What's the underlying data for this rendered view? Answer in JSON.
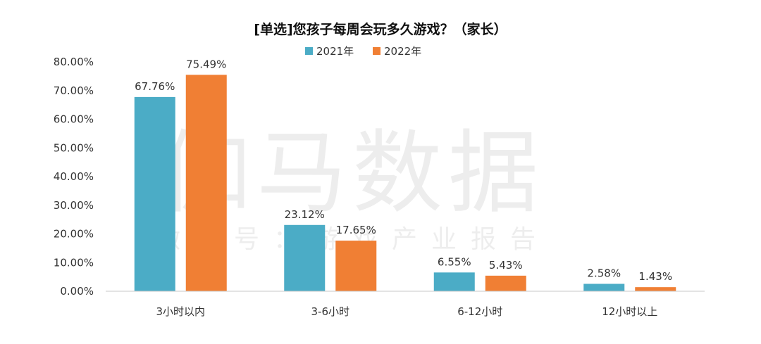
{
  "watermark": {
    "main": "伽马数据",
    "sub": "微信号：游戏产业报告"
  },
  "chart_data": {
    "type": "bar",
    "title": "[单选]您孩子每周会玩多久游戏？（家长）",
    "categories": [
      "3小时以内",
      "3-6小时",
      "6-12小时",
      "12小时以上"
    ],
    "series": [
      {
        "name": "2021年",
        "color": "#4bacc6",
        "values": [
          67.76,
          23.12,
          6.55,
          2.58
        ],
        "labels": [
          "67.76%",
          "23.12%",
          "6.55%",
          "2.58%"
        ]
      },
      {
        "name": "2022年",
        "color": "#f07f34",
        "values": [
          75.49,
          17.65,
          5.43,
          1.43
        ],
        "labels": [
          "75.49%",
          "17.65%",
          "5.43%",
          "1.43%"
        ]
      }
    ],
    "ylim": [
      0,
      80
    ],
    "yticks": [
      "0.00%",
      "10.00%",
      "20.00%",
      "30.00%",
      "40.00%",
      "50.00%",
      "60.00%",
      "70.00%",
      "80.00%"
    ],
    "xlabel": "",
    "ylabel": "",
    "legend_position": "top-center",
    "grid": false
  }
}
